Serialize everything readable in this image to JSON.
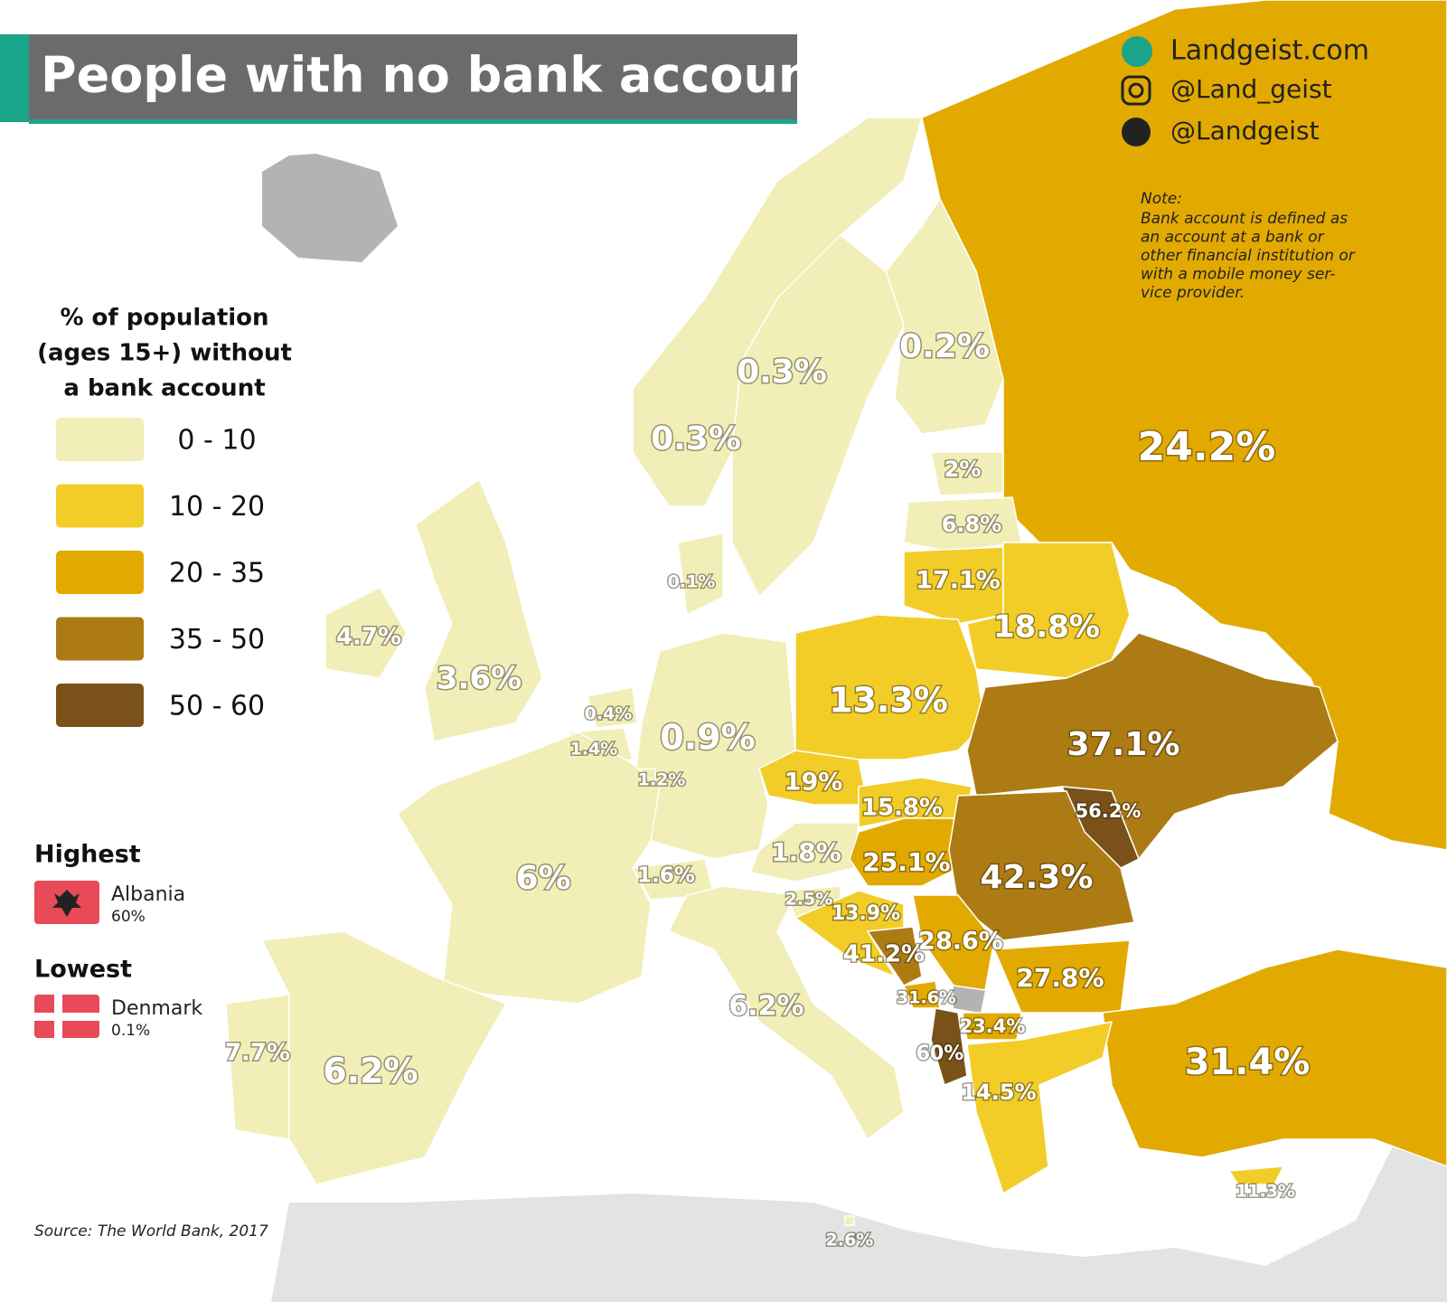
{
  "header": {
    "title": "People with no bank account"
  },
  "social": {
    "website": "Landgeist.com",
    "instagram": "@Land_geist",
    "twitter": "@Landgeist"
  },
  "note": {
    "title": "Note:",
    "lines": [
      "Bank account is defined as",
      "an account at a bank or",
      "other financial institution or",
      "with a mobile money ser-",
      "vice provider."
    ]
  },
  "legend": {
    "title_lines": [
      "% of population",
      "(ages 15+) without",
      "a bank account"
    ],
    "bins": [
      {
        "min": 0,
        "max": 10,
        "label": "0  - 10",
        "color": "#f1eeb7"
      },
      {
        "min": 10,
        "max": 20,
        "label": "10 - 20",
        "color": "#f2cd28"
      },
      {
        "min": 20,
        "max": 35,
        "label": "20 - 35",
        "color": "#e2aa00"
      },
      {
        "min": 35,
        "max": 50,
        "label": "35 - 50",
        "color": "#ad7b14"
      },
      {
        "min": 50,
        "max": 60,
        "label": "50 - 60",
        "color": "#7a5219"
      }
    ]
  },
  "highest": {
    "heading": "Highest",
    "country": "Albania",
    "value": 60,
    "label": "60%"
  },
  "lowest": {
    "heading": "Lowest",
    "country": "Denmark",
    "value": 0.1,
    "label": "0.1%"
  },
  "countries": [
    {
      "value": 24.2,
      "label": "24.2%"
    },
    {
      "value": 0.2,
      "label": "0.2%"
    },
    {
      "value": 0.3,
      "label": "0.3%"
    },
    {
      "value": 0.3,
      "label": "0.3%"
    },
    {
      "value": 2,
      "label": "2%"
    },
    {
      "value": 6.8,
      "label": "6.8%"
    },
    {
      "value": 17.1,
      "label": "17.1%"
    },
    {
      "value": 18.8,
      "label": "18.8%"
    },
    {
      "value": 0.1,
      "label": "0.1%"
    },
    {
      "value": 4.7,
      "label": "4.7%"
    },
    {
      "value": 3.6,
      "label": "3.6%"
    },
    {
      "value": 13.3,
      "label": "13.3%"
    },
    {
      "value": 37.1,
      "label": "37.1%"
    },
    {
      "value": 0.4,
      "label": "0.4%"
    },
    {
      "value": 1.4,
      "label": "1.4%"
    },
    {
      "value": 0.9,
      "label": "0.9%"
    },
    {
      "value": 1.2,
      "label": "1.2%"
    },
    {
      "value": 19,
      "label": "19%"
    },
    {
      "value": 15.8,
      "label": "15.8%"
    },
    {
      "value": 56.2,
      "label": "56.2%"
    },
    {
      "value": 1.8,
      "label": "1.8%"
    },
    {
      "value": 25.1,
      "label": "25.1%"
    },
    {
      "value": 42.3,
      "label": "42.3%"
    },
    {
      "value": 6,
      "label": "6%"
    },
    {
      "value": 1.6,
      "label": "1.6%"
    },
    {
      "value": 2.5,
      "label": "2.5%"
    },
    {
      "value": 13.9,
      "label": "13.9%"
    },
    {
      "value": 41.2,
      "label": "41.2%"
    },
    {
      "value": 28.6,
      "label": "28.6%"
    },
    {
      "value": 27.8,
      "label": "27.8%"
    },
    {
      "value": 31.6,
      "label": "31.6%"
    },
    {
      "value": 23.4,
      "label": "23.4%"
    },
    {
      "value": 6.2,
      "label": "6.2%"
    },
    {
      "value": 60,
      "label": "60%"
    },
    {
      "value": 31.4,
      "label": "31.4%"
    },
    {
      "value": 7.7,
      "label": "7.7%"
    },
    {
      "value": 6.2,
      "label": "6.2%"
    },
    {
      "value": 14.5,
      "label": "14.5%"
    },
    {
      "value": 11.3,
      "label": "11.3%"
    },
    {
      "value": 2.6,
      "label": "2.6%"
    }
  ],
  "source": "Source: The World Bank, 2017"
}
